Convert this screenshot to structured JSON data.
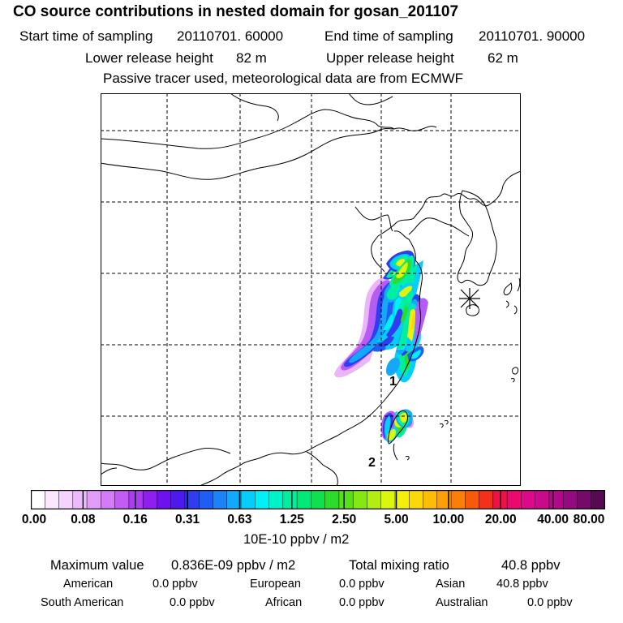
{
  "header": {
    "title": "CO  source contributions in nested domain for gosan_201107",
    "start_label": "Start time of sampling",
    "start_value": "20110701. 60000",
    "end_label": "End time of sampling",
    "end_value": "20110701. 90000",
    "lower_label": "Lower release height",
    "lower_value": "82 m",
    "upper_label": "Upper release height",
    "upper_value": "62 m",
    "note": "Passive tracer used, meteorological data are from ECMWF"
  },
  "map": {
    "region_labels": [
      "1",
      "2"
    ],
    "receptor_marker": "asterisk-station-marker"
  },
  "colorbar": {
    "tick_labels": [
      "0.00",
      "0.08",
      "0.16",
      "0.31",
      "0.63",
      "1.25",
      "2.50",
      "5.00",
      "10.00",
      "20.00",
      "40.00",
      "80.00"
    ],
    "unit": "10E-10 ppbv / m2",
    "colors": [
      "#ffffff",
      "#fbe8ff",
      "#f5d2ff",
      "#efbafd",
      "#e49cfa",
      "#d67bf7",
      "#c35cf5",
      "#ab3cf2",
      "#8e1ff0",
      "#6f10ee",
      "#4e19ee",
      "#2f3cf0",
      "#1f5ef4",
      "#1c82f7",
      "#14a8fa",
      "#06cdfc",
      "#00f0f5",
      "#00f2c8",
      "#00eea0",
      "#00e878",
      "#10e050",
      "#2cdc2a",
      "#58e018",
      "#86e812",
      "#b2ef10",
      "#daf50e",
      "#f4f00c",
      "#fbd808",
      "#fdbd06",
      "#fd9f06",
      "#fb7e08",
      "#f85a0c",
      "#f4301a",
      "#ee1246",
      "#e80a6e",
      "#dc0a8a",
      "#c80a8c",
      "#b00a8a",
      "#940a80",
      "#760a6a",
      "#560a50"
    ]
  },
  "summary": {
    "max_label": "Maximum value",
    "max_value": "0.836E-09 ppbv / m2",
    "total_label": "Total mixing ratio",
    "total_value": "40.8 ppbv",
    "rows": [
      [
        {
          "name": "American",
          "value": "0.0 ppbv"
        },
        {
          "name": "European",
          "value": "0.0 ppbv"
        },
        {
          "name": "Asian",
          "value": "40.8 ppbv"
        }
      ],
      [
        {
          "name": "South American",
          "value": "0.0 ppbv"
        },
        {
          "name": "African",
          "value": "0.0 ppbv"
        },
        {
          "name": "Australian",
          "value": "0.0 ppbv"
        }
      ]
    ]
  }
}
